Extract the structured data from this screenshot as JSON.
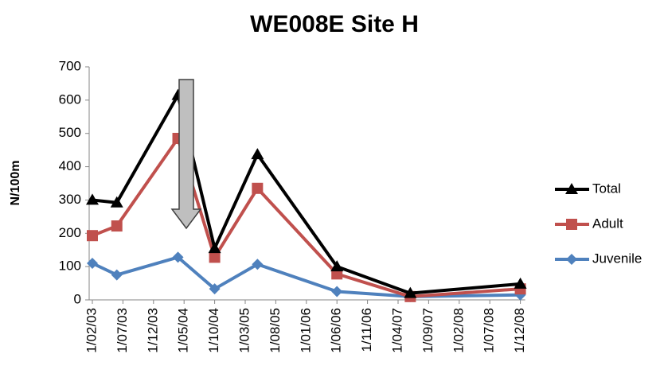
{
  "chart_data": {
    "type": "line",
    "title": "WE008E Site H",
    "y_label": "N/100m",
    "x": [
      "1/02/03",
      "1/06/03",
      "1/04/04",
      "1/10/04",
      "1/05/05",
      "1/06/06",
      "1/06/07",
      "1/12/08"
    ],
    "series": [
      {
        "name": "Total",
        "color": "#000000",
        "marker": "triangle",
        "values": [
          300,
          292,
          615,
          155,
          437,
          100,
          20,
          48
        ]
      },
      {
        "name": "Adult",
        "color": "#c0504d",
        "marker": "square",
        "values": [
          193,
          222,
          485,
          128,
          335,
          78,
          10,
          33
        ]
      },
      {
        "name": "Juvenile",
        "color": "#4f81bd",
        "marker": "diamond",
        "values": [
          110,
          75,
          128,
          33,
          107,
          25,
          10,
          15
        ]
      }
    ],
    "xticks": [
      "1/02/03",
      "1/07/03",
      "1/12/03",
      "1/05/04",
      "1/10/04",
      "1/03/05",
      "1/08/05",
      "1/01/06",
      "1/06/06",
      "1/11/06",
      "1/04/07",
      "1/09/07",
      "1/02/08",
      "1/07/08",
      "1/12/08"
    ],
    "ylim": [
      0,
      700
    ],
    "yticks": [
      0,
      100,
      200,
      300,
      400,
      500,
      600,
      700
    ],
    "grid": false,
    "legend": "right"
  }
}
